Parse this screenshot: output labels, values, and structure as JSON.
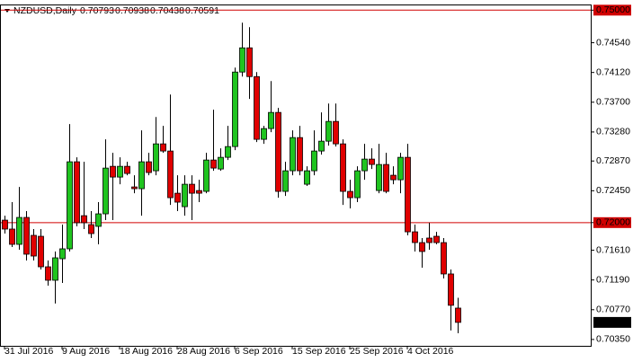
{
  "chart_data": {
    "type": "candlestick",
    "title": "NZDUSD,Daily",
    "categories": [
      "31 Jul 2016",
      null,
      null,
      null,
      null,
      null,
      null,
      null,
      "9 Aug 2016",
      null,
      null,
      null,
      null,
      null,
      null,
      null,
      "18 Aug 2016",
      null,
      null,
      null,
      null,
      null,
      null,
      null,
      "28 Aug 2016",
      null,
      null,
      null,
      null,
      null,
      null,
      null,
      "6 Sep 2016",
      null,
      null,
      null,
      null,
      null,
      null,
      null,
      "15 Sep 2016",
      null,
      null,
      null,
      null,
      null,
      null,
      null,
      "25 Sep 2016",
      null,
      null,
      null,
      null,
      null,
      null,
      null,
      "4 Oct 2016",
      null,
      null,
      null,
      null,
      null,
      null,
      null
    ],
    "open": [
      0.72035,
      0.71909,
      0.71693,
      0.72073,
      0.7182,
      0.71807,
      0.71376,
      0.71186,
      0.7149,
      0.7163,
      0.72859,
      0.72098,
      0.71972,
      0.71947,
      0.72124,
      0.72795,
      0.72643,
      0.72795,
      0.72504,
      0.72479,
      0.72859,
      0.72732,
      0.73112,
      0.73011,
      0.72415,
      0.72225,
      0.72542,
      0.72453,
      0.72441,
      0.72884,
      0.72757,
      0.72922,
      0.73074,
      0.74126,
      0.74468,
      0.74062,
      0.73176,
      0.73328,
      0.73556,
      0.72441,
      0.72732,
      0.73201,
      0.72542,
      0.72732,
      0.73011,
      0.7315,
      0.73429,
      0.73112,
      0.72441,
      0.72352,
      0.72732,
      0.72897,
      0.72453,
      0.72821,
      0.72669,
      0.72605,
      0.72922,
      0.7187,
      0.71718,
      0.71782,
      0.71807,
      0.71718,
      0.71275,
      0.70793
    ],
    "high": [
      0.72098,
      0.72289,
      0.72504,
      0.72162,
      0.71909,
      0.71909,
      0.71465,
      0.71592,
      0.71972,
      0.73391,
      0.72922,
      0.72859,
      0.72162,
      0.72289,
      0.73176,
      0.72985,
      0.72922,
      0.72859,
      0.72669,
      0.73302,
      0.72985,
      0.73492,
      0.73366,
      0.73809,
      0.72669,
      0.72669,
      0.72669,
      0.72605,
      0.72985,
      0.73594,
      0.73049,
      0.73366,
      0.74189,
      0.74823,
      0.74759,
      0.74126,
      0.73366,
      0.73999,
      0.73619,
      0.72859,
      0.73302,
      0.73366,
      0.72795,
      0.73302,
      0.73556,
      0.73682,
      0.73682,
      0.73176,
      0.72605,
      0.72795,
      0.73112,
      0.73049,
      0.73112,
      0.72985,
      0.72795,
      0.72985,
      0.73112,
      0.71972,
      0.71782,
      0.71998,
      0.7187,
      0.71782,
      0.71338,
      0.70938
    ],
    "low": [
      0.71845,
      0.71655,
      0.71617,
      0.71465,
      0.71465,
      0.71338,
      0.7111,
      0.70857,
      0.71148,
      0.71592,
      0.71947,
      0.71909,
      0.71782,
      0.71693,
      0.72035,
      0.72035,
      0.72542,
      0.72669,
      0.72415,
      0.72098,
      0.72669,
      0.72669,
      0.72985,
      0.7225,
      0.72162,
      0.72098,
      0.72035,
      0.72289,
      0.72415,
      0.72732,
      0.72732,
      0.72884,
      0.73023,
      0.74062,
      0.73746,
      0.73138,
      0.73112,
      0.73277,
      0.72352,
      0.72377,
      0.72669,
      0.72669,
      0.72517,
      0.72669,
      0.7296,
      0.73087,
      0.73074,
      0.7225,
      0.722,
      0.72289,
      0.72605,
      0.72757,
      0.72415,
      0.72415,
      0.72542,
      0.72415,
      0.7182,
      0.71592,
      0.71364,
      0.71617,
      0.71693,
      0.71212,
      0.70477,
      0.70438
    ],
    "close": [
      0.71909,
      0.71693,
      0.72073,
      0.71554,
      0.71528,
      0.71376,
      0.71186,
      0.71503,
      0.7163,
      0.72859,
      0.71998,
      0.71998,
      0.71845,
      0.72124,
      0.7277,
      0.72643,
      0.72795,
      0.72694,
      0.72479,
      0.72859,
      0.72707,
      0.73112,
      0.73011,
      0.72352,
      0.72289,
      0.72542,
      0.72415,
      0.72415,
      0.72884,
      0.7277,
      0.72922,
      0.73074,
      0.74126,
      0.74468,
      0.74062,
      0.73176,
      0.73328,
      0.73556,
      0.72441,
      0.72732,
      0.73201,
      0.72732,
      0.72732,
      0.73011,
      0.7315,
      0.73429,
      0.73112,
      0.72441,
      0.72352,
      0.72732,
      0.72897,
      0.72821,
      0.72821,
      0.72441,
      0.72605,
      0.72922,
      0.7187,
      0.71718,
      0.71592,
      0.71718,
      0.71718,
      0.71275,
      0.70832,
      0.70591
    ],
    "up_color": "#1fc41f",
    "down_color": "#e00000",
    "hlines": [
      0.75,
      0.72
    ],
    "hline_color": "#d00000",
    "ylim": [
      0.7026,
      0.7508
    ],
    "yticks": [
      {
        "value": 0.75,
        "label": "0.75000"
      },
      {
        "value": 0.7454,
        "label": "0.74540"
      },
      {
        "value": 0.7412,
        "label": "0.74120"
      },
      {
        "value": 0.737,
        "label": "0.73700"
      },
      {
        "value": 0.7328,
        "label": "0.73280"
      },
      {
        "value": 0.7287,
        "label": "0.72870"
      },
      {
        "value": 0.7245,
        "label": "0.72450"
      },
      {
        "value": 0.72,
        "label": "0.72000"
      },
      {
        "value": 0.7161,
        "label": "0.71610"
      },
      {
        "value": 0.7119,
        "label": "0.71190"
      },
      {
        "value": 0.7077,
        "label": "0.70770"
      },
      {
        "value": 0.7035,
        "label": "0.70350"
      }
    ]
  }
}
